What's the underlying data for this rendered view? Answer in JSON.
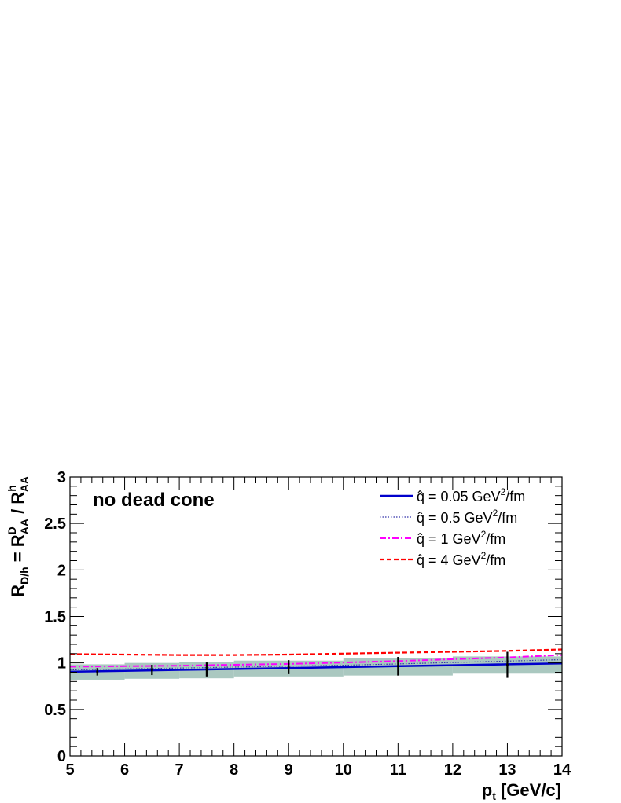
{
  "chart_data": {
    "type": "line",
    "title": "",
    "annotation": "no dead cone",
    "xlabel": "p_t [GeV/c]",
    "xlabel_parts": {
      "main": "p",
      "sub": "t",
      "rest": " [GeV/c]"
    },
    "ylabel": "R_D/h = R^D_AA / R^h_AA",
    "ylabel_parts": {
      "r": "R",
      "r_sub": "D/h",
      "eq": " = R",
      "d_sup": "D",
      "aa": "AA",
      "slash": " / R",
      "h_sup": "h"
    },
    "xlim": [
      5,
      14
    ],
    "ylim": [
      0,
      3
    ],
    "xticks": [
      5,
      6,
      7,
      8,
      9,
      10,
      11,
      12,
      13,
      14
    ],
    "yticks": [
      0,
      0.5,
      1,
      1.5,
      2,
      2.5,
      3
    ],
    "ytick_labels": [
      "0",
      "0.5",
      "1",
      "1.5",
      "2",
      "2.5",
      "3"
    ],
    "grid": false,
    "legend_position": "top-right",
    "series": [
      {
        "name": "q̂ = 0.05 GeV²/fm",
        "legend": {
          "pre": "q̂ = 0.05 GeV",
          "sup": "2",
          "post": "/fm"
        },
        "color": "#0000cc",
        "style": "solid",
        "x": [
          5,
          6,
          7,
          8,
          9,
          10,
          11,
          12,
          13,
          14
        ],
        "y": [
          0.905,
          0.915,
          0.925,
          0.935,
          0.945,
          0.955,
          0.965,
          0.975,
          0.985,
          0.995
        ]
      },
      {
        "name": "q̂ = 0.5 GeV²/fm",
        "legend": {
          "pre": "q̂ = 0.5 GeV",
          "sup": "2",
          "post": "/fm"
        },
        "color": "#3333aa",
        "style": "dotted",
        "x": [
          5,
          6,
          7,
          8,
          9,
          10,
          11,
          12,
          13,
          14
        ],
        "y": [
          0.925,
          0.935,
          0.945,
          0.955,
          0.965,
          0.975,
          0.99,
          1.005,
          1.02,
          1.035
        ]
      },
      {
        "name": "q̂ = 1 GeV²/fm",
        "legend": {
          "pre": "q̂ = 1 GeV",
          "sup": "2",
          "post": "/fm"
        },
        "color": "#ff00ff",
        "style": "dashdot",
        "x": [
          5,
          6,
          7,
          8,
          9,
          10,
          11,
          12,
          13,
          14
        ],
        "y": [
          0.96,
          0.965,
          0.97,
          0.98,
          0.99,
          1.005,
          1.02,
          1.04,
          1.06,
          1.085
        ]
      },
      {
        "name": "q̂ = 4 GeV²/fm",
        "legend": {
          "pre": "q̂ = 4 GeV",
          "sup": "2",
          "post": "/fm"
        },
        "color": "#ff0000",
        "style": "dashed",
        "x": [
          5,
          6,
          7,
          8,
          9,
          10,
          11,
          12,
          13,
          14
        ],
        "y": [
          1.095,
          1.09,
          1.085,
          1.085,
          1.09,
          1.1,
          1.11,
          1.12,
          1.13,
          1.145
        ]
      }
    ],
    "data_points": {
      "x": [
        5.5,
        6.5,
        7.5,
        9,
        11,
        13
      ],
      "y": [
        0.905,
        0.925,
        0.93,
        0.955,
        0.965,
        0.98
      ],
      "yerr": [
        0.04,
        0.055,
        0.075,
        0.075,
        0.1,
        0.14
      ],
      "color": "#000000"
    },
    "systematic_band": {
      "color": "#aac8c0",
      "bins": [
        {
          "x0": 5,
          "x1": 6,
          "y0": 0.82,
          "y1": 0.985
        },
        {
          "x0": 6,
          "x1": 7,
          "y0": 0.83,
          "y1": 1.0
        },
        {
          "x0": 7,
          "x1": 8,
          "y0": 0.835,
          "y1": 1.01
        },
        {
          "x0": 8,
          "x1": 10,
          "y0": 0.855,
          "y1": 1.025
        },
        {
          "x0": 10,
          "x1": 12,
          "y0": 0.865,
          "y1": 1.05
        },
        {
          "x0": 12,
          "x1": 14,
          "y0": 0.885,
          "y1": 1.07
        }
      ]
    }
  }
}
